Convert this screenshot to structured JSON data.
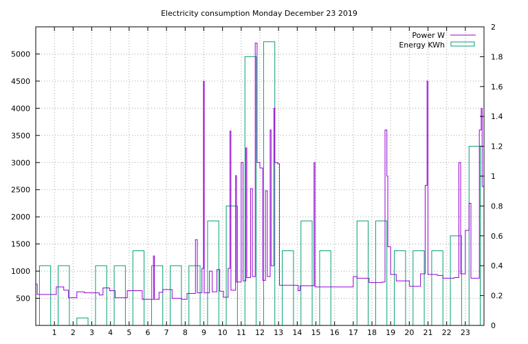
{
  "chart_data": {
    "type": "line",
    "title": "Electricity consumption Monday December 23 2019",
    "grid": true,
    "legend_position": "top-right",
    "x_ticks": [
      "1",
      "2",
      "3",
      "4",
      "5",
      "6",
      "7",
      "8",
      "9",
      "10",
      "11",
      "12",
      "13",
      "14",
      "15",
      "16",
      "17",
      "18",
      "19",
      "20",
      "21",
      "22",
      "23"
    ],
    "xlim": [
      0,
      24
    ],
    "y_left": {
      "ticks": [
        "500",
        "1000",
        "1500",
        "2000",
        "2500",
        "3000",
        "3500",
        "4000",
        "4500",
        "5000"
      ],
      "tick_values": [
        500,
        1000,
        1500,
        2000,
        2500,
        3000,
        3500,
        4000,
        4500,
        5000
      ],
      "range": [
        0,
        5500
      ]
    },
    "y_right": {
      "ticks": [
        "0",
        "0.2",
        "0.4",
        "0.6",
        "0.8",
        "1",
        "1.2",
        "1.4",
        "1.6",
        "1.8",
        "2"
      ],
      "tick_values": [
        0,
        0.2,
        0.4,
        0.6,
        0.8,
        1,
        1.2,
        1.4,
        1.6,
        1.8,
        2
      ],
      "range": [
        0,
        2
      ]
    },
    "colors": {
      "power": "#9400d3",
      "energy": "#009e73",
      "grid": "#a0a0a0"
    },
    "series": [
      {
        "name": "Power W",
        "axis": "left",
        "points": [
          [
            0,
            760
          ],
          [
            0.08,
            570
          ],
          [
            1,
            570
          ],
          [
            1.1,
            710
          ],
          [
            1.5,
            650
          ],
          [
            1.75,
            510
          ],
          [
            2.2,
            620
          ],
          [
            2.6,
            600
          ],
          [
            3.4,
            560
          ],
          [
            3.6,
            690
          ],
          [
            3.95,
            640
          ],
          [
            4.25,
            510
          ],
          [
            4.9,
            640
          ],
          [
            5.7,
            480
          ],
          [
            6.3,
            1280
          ],
          [
            6.35,
            480
          ],
          [
            6.6,
            610
          ],
          [
            6.8,
            660
          ],
          [
            7.3,
            500
          ],
          [
            7.8,
            480
          ],
          [
            8.1,
            590
          ],
          [
            8.55,
            1580
          ],
          [
            8.65,
            600
          ],
          [
            8.9,
            1050
          ],
          [
            8.98,
            4500
          ],
          [
            9.02,
            600
          ],
          [
            9.3,
            1000
          ],
          [
            9.45,
            620
          ],
          [
            9.7,
            1030
          ],
          [
            9.85,
            630
          ],
          [
            10.05,
            520
          ],
          [
            10.3,
            1050
          ],
          [
            10.4,
            3580
          ],
          [
            10.45,
            650
          ],
          [
            10.7,
            2760
          ],
          [
            10.75,
            800
          ],
          [
            11.0,
            3000
          ],
          [
            11.1,
            820
          ],
          [
            11.25,
            3270
          ],
          [
            11.3,
            880
          ],
          [
            11.5,
            2520
          ],
          [
            11.6,
            900
          ],
          [
            11.75,
            5200
          ],
          [
            11.85,
            3000
          ],
          [
            12.0,
            2900
          ],
          [
            12.15,
            830
          ],
          [
            12.3,
            2480
          ],
          [
            12.4,
            900
          ],
          [
            12.55,
            3600
          ],
          [
            12.6,
            1100
          ],
          [
            12.75,
            4000
          ],
          [
            12.8,
            3000
          ],
          [
            12.95,
            2980
          ],
          [
            13.05,
            740
          ],
          [
            13.9,
            740
          ],
          [
            14.05,
            640
          ],
          [
            14.15,
            730
          ],
          [
            14.9,
            3000
          ],
          [
            14.95,
            710
          ],
          [
            16,
            710
          ],
          [
            17.0,
            900
          ],
          [
            17.2,
            870
          ],
          [
            17.85,
            790
          ],
          [
            18.55,
            800
          ],
          [
            18.7,
            3600
          ],
          [
            18.8,
            2750
          ],
          [
            18.85,
            1450
          ],
          [
            19.0,
            940
          ],
          [
            19.3,
            820
          ],
          [
            20.0,
            720
          ],
          [
            20.6,
            950
          ],
          [
            20.85,
            2580
          ],
          [
            20.95,
            4500
          ],
          [
            21.0,
            940
          ],
          [
            21.5,
            920
          ],
          [
            21.8,
            870
          ],
          [
            22.4,
            880
          ],
          [
            22.65,
            3000
          ],
          [
            22.75,
            950
          ],
          [
            23.0,
            1750
          ],
          [
            23.2,
            2250
          ],
          [
            23.3,
            870
          ],
          [
            23.75,
            3600
          ],
          [
            23.85,
            4000
          ],
          [
            23.9,
            2560
          ],
          [
            24,
            2650
          ]
        ]
      },
      {
        "name": "Energy KWh",
        "axis": "right",
        "values": [
          0.4,
          0.4,
          0.05,
          0.4,
          0.4,
          0.5,
          0.4,
          0.4,
          0.4,
          0.7,
          0.8,
          1.8,
          1.9,
          0.5,
          0.7,
          0.5,
          0,
          0.7,
          0.7,
          0.5,
          0.5,
          0.5,
          0.6,
          1.2
        ]
      }
    ]
  }
}
